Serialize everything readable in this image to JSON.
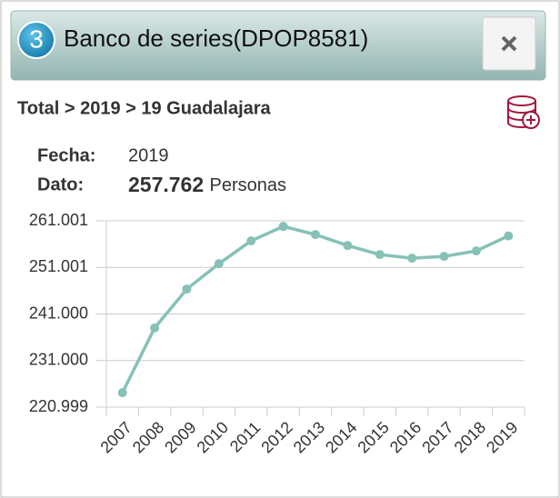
{
  "header": {
    "badge": "3",
    "title": "Banco de series(DPOP8581)"
  },
  "breadcrumb": "Total > 2019 > 19 Guadalajara",
  "details": {
    "date_label": "Fecha:",
    "date": "2019",
    "value_label": "Dato:",
    "value": "257.762",
    "unit": "Personas"
  },
  "chart_data": {
    "type": "line",
    "categories": [
      "2007",
      "2008",
      "2009",
      "2010",
      "2011",
      "2012",
      "2013",
      "2014",
      "2015",
      "2016",
      "2017",
      "2018",
      "2019"
    ],
    "series": [
      {
        "name": "Personas",
        "color": "#86c1b7",
        "values": [
          224100,
          238000,
          246350,
          251800,
          256700,
          259800,
          258050,
          255700,
          253760,
          252980,
          253370,
          254540,
          257762
        ]
      }
    ],
    "ylim": [
      220999,
      261001
    ],
    "yticks": [
      {
        "value": 220999,
        "label": "220.999"
      },
      {
        "value": 231000,
        "label": "231.000"
      },
      {
        "value": 241000,
        "label": "241.000"
      },
      {
        "value": 251001,
        "label": "251.001"
      },
      {
        "value": 261001,
        "label": "261.001"
      }
    ],
    "grid": true
  }
}
